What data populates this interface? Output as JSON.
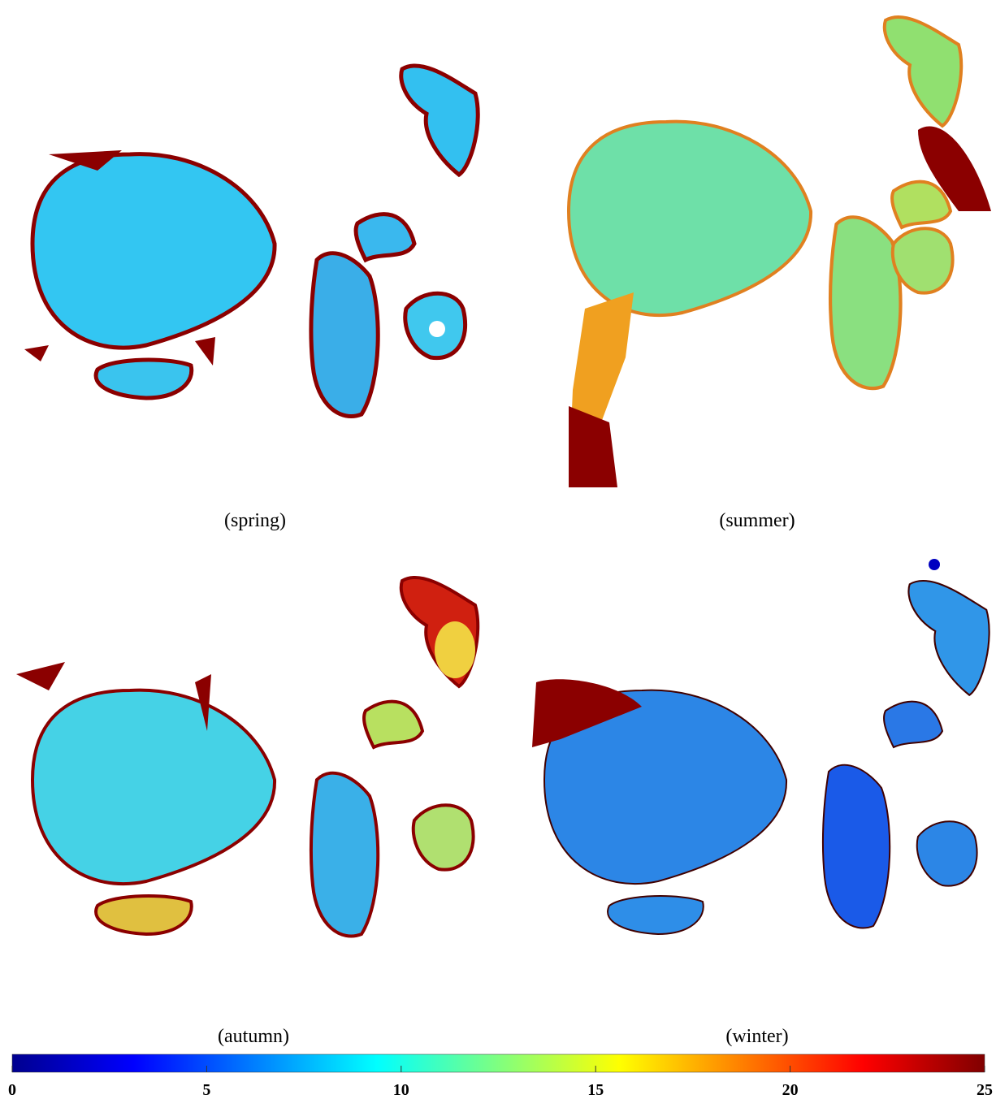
{
  "panels": [
    {
      "label": "(spring)"
    },
    {
      "label": "(summer)"
    },
    {
      "label": "(autumn)"
    },
    {
      "label": "(winter)"
    }
  ],
  "colorbar": {
    "lim": [
      0,
      25
    ],
    "ticks": [
      0,
      5,
      10,
      15,
      20,
      25
    ]
  }
}
